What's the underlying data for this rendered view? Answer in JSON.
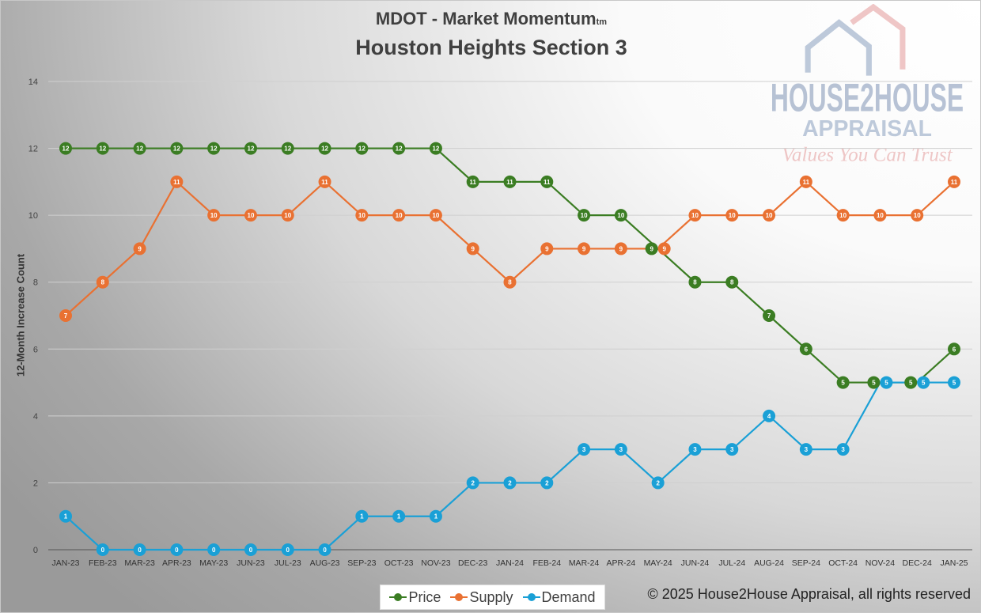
{
  "title": {
    "main": "MDOT - Market Momentum",
    "tm": "tm",
    "subtitle": "Houston Heights Section 3"
  },
  "watermark": {
    "line1": "HOUSE2HOUSE",
    "line2": "APPRAISAL",
    "line3": "Values You Can Trust"
  },
  "copyright": "© 2025 House2House Appraisal, all rights reserved",
  "chart_data": {
    "type": "line",
    "title": "MDOT - Market Momentum - Houston Heights Section 3",
    "xlabel": "",
    "ylabel": "12-Month Increase Count",
    "ylim": [
      0,
      14
    ],
    "yticks": [
      0,
      2,
      4,
      6,
      8,
      10,
      12,
      14
    ],
    "grid": true,
    "legend": "bottom-center",
    "categories": [
      "JAN-23",
      "FEB-23",
      "MAR-23",
      "APR-23",
      "MAY-23",
      "JUN-23",
      "JUL-23",
      "AUG-23",
      "SEP-23",
      "OCT-23",
      "NOV-23",
      "DEC-23",
      "JAN-24",
      "FEB-24",
      "MAR-24",
      "APR-24",
      "MAY-24",
      "JUN-24",
      "JUL-24",
      "AUG-24",
      "SEP-24",
      "OCT-24",
      "NOV-24",
      "DEC-24",
      "JAN-25"
    ],
    "series": [
      {
        "name": "Price",
        "color": "#3b7d23",
        "values": [
          12,
          12,
          12,
          12,
          12,
          12,
          12,
          12,
          12,
          12,
          12,
          11,
          11,
          11,
          10,
          10,
          9,
          8,
          8,
          7,
          6,
          5,
          5,
          5,
          6
        ]
      },
      {
        "name": "Supply",
        "color": "#e97132",
        "values": [
          7,
          8,
          9,
          11,
          10,
          10,
          10,
          11,
          10,
          10,
          10,
          9,
          8,
          9,
          9,
          9,
          9,
          10,
          10,
          10,
          11,
          10,
          10,
          10,
          11
        ]
      },
      {
        "name": "Demand",
        "color": "#1aa0d6",
        "values": [
          1,
          0,
          0,
          0,
          0,
          0,
          0,
          0,
          1,
          1,
          1,
          2,
          2,
          2,
          3,
          3,
          2,
          3,
          3,
          4,
          3,
          3,
          5,
          5,
          5
        ]
      }
    ]
  }
}
